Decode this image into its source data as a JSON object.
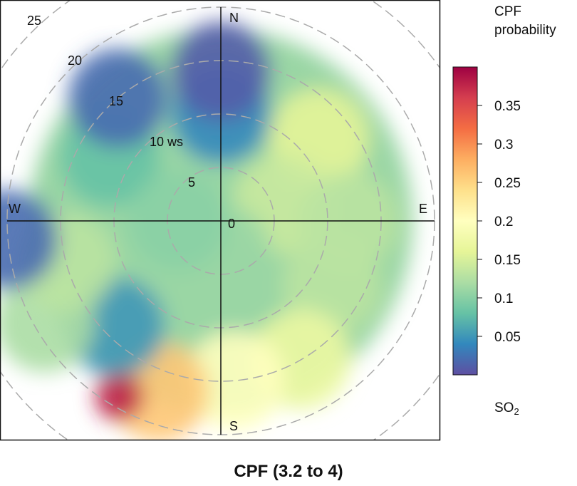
{
  "chart_data": {
    "type": "heatmap",
    "subtype": "polar-plot",
    "title": "CPF (3.2 to 4)",
    "legend_title": "CPF probability",
    "pollutant": "SO",
    "pollutant_subscript": "2",
    "radial_label_suffix": "ws",
    "radial_ticks": [
      0,
      5,
      10,
      15,
      20,
      25
    ],
    "radial_max": 25,
    "compass": [
      "N",
      "E",
      "S",
      "W"
    ],
    "colorbar_range": [
      0,
      0.4
    ],
    "colorbar_ticks": [
      "0.05",
      "0.1",
      "0.15",
      "0.2",
      "0.25",
      "0.3",
      "0.35"
    ],
    "colorscale": [
      "#5e4fa2",
      "#3288bd",
      "#66c2a5",
      "#abdda4",
      "#e6f598",
      "#ffffbf",
      "#fee08b",
      "#fdae61",
      "#f46d43",
      "#d53e4f",
      "#9e0142"
    ],
    "hotspots": [
      {
        "direction_deg": 0,
        "speed": 10,
        "value": 0.04
      },
      {
        "direction_deg": 0,
        "speed": 14,
        "value": 0.01
      },
      {
        "direction_deg": 50,
        "speed": 12,
        "value": 0.16
      },
      {
        "direction_deg": 75,
        "speed": 6,
        "value": 0.14
      },
      {
        "direction_deg": 90,
        "speed": 12,
        "value": 0.13
      },
      {
        "direction_deg": 120,
        "speed": 12,
        "value": 0.13
      },
      {
        "direction_deg": 150,
        "speed": 15,
        "value": 0.17
      },
      {
        "direction_deg": 175,
        "speed": 15,
        "value": 0.2
      },
      {
        "direction_deg": 200,
        "speed": 17,
        "value": 0.26
      },
      {
        "direction_deg": 210,
        "speed": 19,
        "value": 0.38
      },
      {
        "direction_deg": 225,
        "speed": 14,
        "value": 0.05
      },
      {
        "direction_deg": 240,
        "speed": 19,
        "value": 0.12
      },
      {
        "direction_deg": 255,
        "speed": 15,
        "value": 0.13
      },
      {
        "direction_deg": 265,
        "speed": 20,
        "value": 0.02
      },
      {
        "direction_deg": 300,
        "speed": 12,
        "value": 0.08
      },
      {
        "direction_deg": 320,
        "speed": 15,
        "value": 0.02
      },
      {
        "direction_deg": 180,
        "speed": 3,
        "value": 0.11
      },
      {
        "direction_deg": 270,
        "speed": 4,
        "value": 0.1
      }
    ],
    "grid": true
  }
}
